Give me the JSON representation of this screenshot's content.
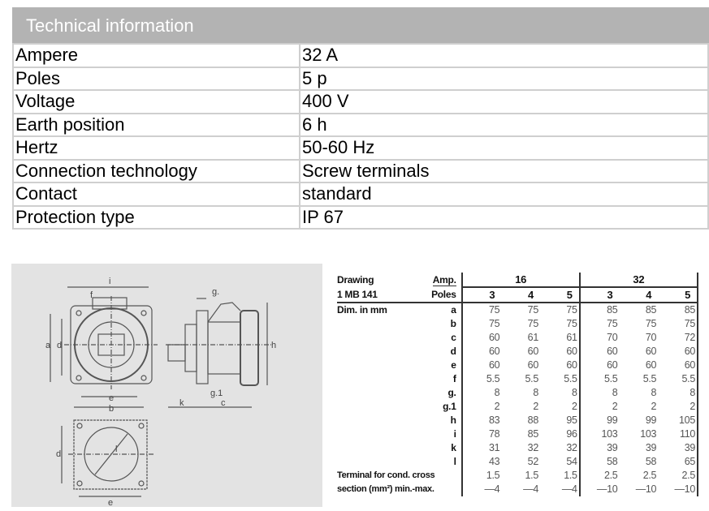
{
  "technical_information": {
    "title": "Technical information",
    "rows": [
      {
        "label": "Ampere",
        "value": "32 A"
      },
      {
        "label": "Poles",
        "value": "5 p"
      },
      {
        "label": "Voltage",
        "value": "400 V"
      },
      {
        "label": "Earth position",
        "value": "6 h"
      },
      {
        "label": "Hertz",
        "value": "50-60 Hz"
      },
      {
        "label": "Connection technology",
        "value": "Screw terminals"
      },
      {
        "label": "Contact",
        "value": "standard"
      },
      {
        "label": "Protection type",
        "value": " IP 67"
      }
    ]
  },
  "drawing_labels": {
    "i": "i",
    "f": "f",
    "a": "a",
    "d": "d",
    "e": "e",
    "b": "b",
    "g": "g.",
    "g1": "g.1",
    "h": "h",
    "k": "k",
    "c": "c",
    "l": "l",
    "d2": "d",
    "e2": "e"
  },
  "dimension_table": {
    "drawing_label": "Drawing",
    "model": "1 MB 141",
    "amp_label": "Amp.",
    "poles_label": "Poles",
    "dim_label": "Dim. in mm",
    "amp_groups": [
      "16",
      "32"
    ],
    "poles": [
      "3",
      "4",
      "5",
      "3",
      "4",
      "5"
    ],
    "rows": [
      {
        "key": "a",
        "values": [
          "75",
          "75",
          "75",
          "85",
          "85",
          "85"
        ]
      },
      {
        "key": "b",
        "values": [
          "75",
          "75",
          "75",
          "75",
          "75",
          "75"
        ]
      },
      {
        "key": "c",
        "values": [
          "60",
          "61",
          "61",
          "70",
          "70",
          "72"
        ]
      },
      {
        "key": "d",
        "values": [
          "60",
          "60",
          "60",
          "60",
          "60",
          "60"
        ]
      },
      {
        "key": "e",
        "values": [
          "60",
          "60",
          "60",
          "60",
          "60",
          "60"
        ]
      },
      {
        "key": "f",
        "values": [
          "5.5",
          "5.5",
          "5.5",
          "5.5",
          "5.5",
          "5.5"
        ]
      },
      {
        "key": "g.",
        "values": [
          "8",
          "8",
          "8",
          "8",
          "8",
          "8"
        ]
      },
      {
        "key": "g.1",
        "values": [
          "2",
          "2",
          "2",
          "2",
          "2",
          "2"
        ]
      },
      {
        "key": "h",
        "values": [
          "83",
          "88",
          "95",
          "99",
          "99",
          "105"
        ]
      },
      {
        "key": "i",
        "values": [
          "78",
          "85",
          "96",
          "103",
          "103",
          "110"
        ]
      },
      {
        "key": "k",
        "values": [
          "31",
          "32",
          "32",
          "39",
          "39",
          "39"
        ]
      },
      {
        "key": "l",
        "values": [
          "43",
          "52",
          "54",
          "58",
          "58",
          "65"
        ]
      }
    ],
    "terminal_label_1": "Terminal for cond. cross",
    "terminal_label_2": "section (mm²) min.-max.",
    "terminal_min": [
      "1.5",
      "1.5",
      "1.5",
      "2.5",
      "2.5",
      "2.5"
    ],
    "terminal_max": [
      "—4",
      "—4",
      "—4",
      "—10",
      "—10",
      "—10"
    ]
  }
}
